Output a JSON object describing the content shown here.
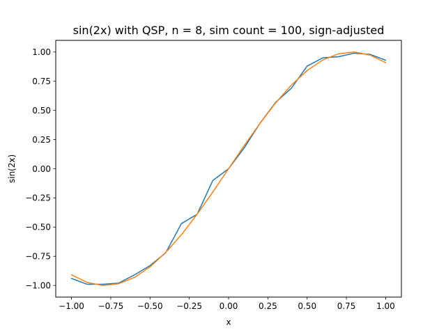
{
  "chart_data": {
    "type": "line",
    "title": "sin(2x) with QSP, n = 8, sim count = 100, sign-adjusted",
    "xlabel": "x",
    "ylabel": "sin(2x)",
    "xlim": [
      -1.1,
      1.1
    ],
    "ylim": [
      -1.1,
      1.1
    ],
    "xticks": [
      -1.0,
      -0.75,
      -0.5,
      -0.25,
      0.0,
      0.25,
      0.5,
      0.75,
      1.0
    ],
    "xtick_labels": [
      "−1.00",
      "−0.75",
      "−0.50",
      "−0.25",
      "0.00",
      "0.25",
      "0.50",
      "0.75",
      "1.00"
    ],
    "yticks": [
      -1.0,
      -0.75,
      -0.5,
      -0.25,
      0.0,
      0.25,
      0.5,
      0.75,
      1.0
    ],
    "ytick_labels": [
      "−1.00",
      "−0.75",
      "−0.50",
      "−0.25",
      "0.00",
      "0.25",
      "0.50",
      "0.75",
      "1.00"
    ],
    "grid": false,
    "legend": false,
    "x": [
      -1.0,
      -0.9,
      -0.8,
      -0.7,
      -0.6,
      -0.5,
      -0.4,
      -0.3,
      -0.2,
      -0.1,
      0.0,
      0.1,
      0.2,
      0.3,
      0.4,
      0.5,
      0.6,
      0.7,
      0.8,
      0.9,
      1.0
    ],
    "series": [
      {
        "color": "#1f77b4",
        "values": [
          -0.94,
          -0.99,
          -0.99,
          -0.98,
          -0.91,
          -0.83,
          -0.72,
          -0.47,
          -0.39,
          -0.1,
          0.0,
          0.18,
          0.39,
          0.57,
          0.69,
          0.88,
          0.95,
          0.96,
          0.99,
          0.98,
          0.93
        ]
      },
      {
        "color": "#ff7f0e",
        "values": [
          -0.909,
          -0.974,
          -1.0,
          -0.985,
          -0.932,
          -0.841,
          -0.717,
          -0.565,
          -0.389,
          -0.199,
          0.0,
          0.199,
          0.389,
          0.565,
          0.717,
          0.841,
          0.932,
          0.985,
          1.0,
          0.974,
          0.909
        ]
      }
    ]
  }
}
